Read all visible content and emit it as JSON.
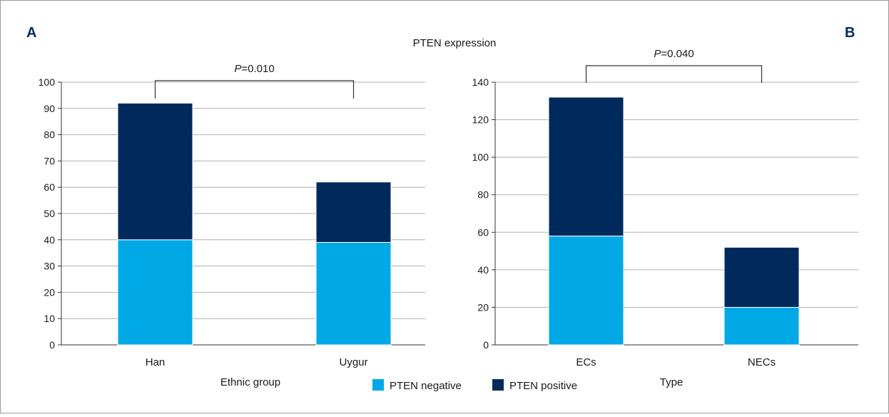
{
  "main_title": "PTEN expression",
  "colors": {
    "negative": "#00a9e6",
    "positive": "#002a5c",
    "grid": "#b0b0b0"
  },
  "legend": [
    {
      "label": "PTEN negative",
      "color_key": "negative"
    },
    {
      "label": "PTEN positive",
      "color_key": "positive"
    }
  ],
  "chart_data": [
    {
      "panel": "A",
      "type": "bar",
      "stacked": true,
      "xlabel": "Ethnic group",
      "ylabel": "",
      "ylim": [
        0,
        100
      ],
      "yticks": [
        0,
        10,
        20,
        30,
        40,
        50,
        60,
        70,
        80,
        90,
        100
      ],
      "categories": [
        "Han",
        "Uygur"
      ],
      "series": [
        {
          "name": "PTEN negative",
          "values": [
            40,
            39
          ]
        },
        {
          "name": "PTEN positive",
          "values": [
            52,
            23
          ]
        }
      ],
      "annotation": {
        "p_label": "P",
        "p_value": "=0.010",
        "between": [
          "Han",
          "Uygur"
        ]
      },
      "grid": true
    },
    {
      "panel": "B",
      "type": "bar",
      "stacked": true,
      "xlabel": "Type",
      "ylabel": "",
      "ylim": [
        0,
        140
      ],
      "yticks": [
        0,
        20,
        40,
        60,
        80,
        100,
        120,
        140
      ],
      "categories": [
        "ECs",
        "NECs"
      ],
      "series": [
        {
          "name": "PTEN negative",
          "values": [
            58,
            20
          ]
        },
        {
          "name": "PTEN positive",
          "values": [
            74,
            32
          ]
        }
      ],
      "annotation": {
        "p_label": "P",
        "p_value": "=0.040",
        "between": [
          "ECs",
          "NECs"
        ]
      },
      "grid": true
    }
  ]
}
